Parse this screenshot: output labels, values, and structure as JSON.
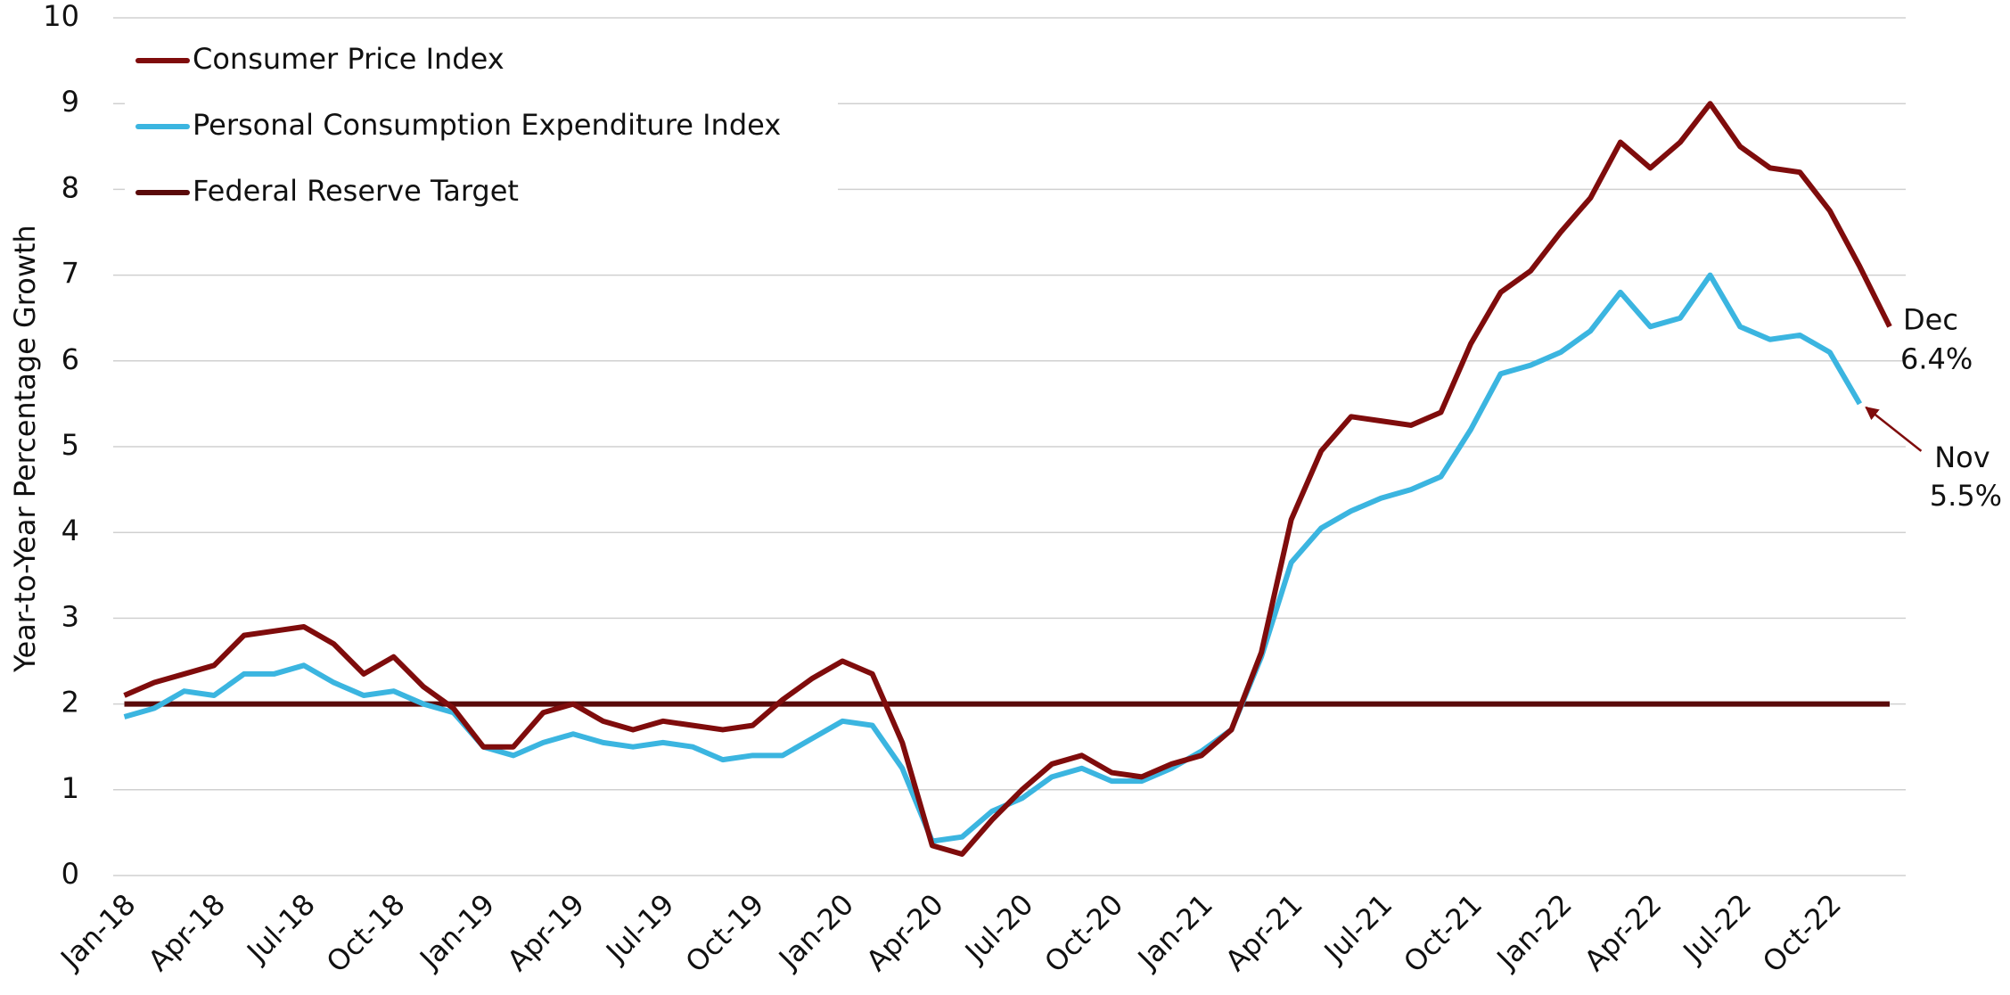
{
  "chart_data": {
    "type": "line",
    "ylabel": "Year-to-Year Percentage Growth",
    "categories": [
      "Jan-18",
      null,
      null,
      "Apr-18",
      null,
      null,
      "Jul-18",
      null,
      null,
      "Oct-18",
      null,
      null,
      "Jan-19",
      null,
      null,
      "Apr-19",
      null,
      null,
      "Jul-19",
      null,
      null,
      "Oct-19",
      null,
      null,
      "Jan-20",
      null,
      null,
      "Apr-20",
      null,
      null,
      "Jul-20",
      null,
      null,
      "Oct-20",
      null,
      null,
      "Jan-21",
      null,
      null,
      "Apr-21",
      null,
      null,
      "Jul-21",
      null,
      null,
      "Oct-21",
      null,
      null,
      "Jan-22",
      null,
      null,
      "Apr-22",
      null,
      null,
      "Jul-22",
      null,
      null,
      "Oct-22",
      null,
      null
    ],
    "series": [
      {
        "name": "Consumer Price Index",
        "color": "#7f0c0c",
        "values": [
          2.1,
          2.25,
          2.35,
          2.45,
          2.8,
          2.85,
          2.9,
          2.7,
          2.35,
          2.55,
          2.2,
          1.95,
          1.5,
          1.5,
          1.9,
          2.0,
          1.8,
          1.7,
          1.8,
          1.75,
          1.7,
          1.75,
          2.05,
          2.3,
          2.5,
          2.35,
          1.55,
          0.35,
          0.25,
          0.65,
          1.0,
          1.3,
          1.4,
          1.2,
          1.15,
          1.3,
          1.4,
          1.7,
          2.6,
          4.15,
          4.95,
          5.35,
          5.3,
          5.25,
          5.4,
          6.2,
          6.8,
          7.05,
          7.5,
          7.9,
          8.55,
          8.25,
          8.55,
          9.0,
          8.5,
          8.25,
          8.2,
          7.75,
          7.1,
          6.4
        ]
      },
      {
        "name": "Personal Consumption Expenditure Index",
        "color": "#3bb5e0",
        "values": [
          1.85,
          1.95,
          2.15,
          2.1,
          2.35,
          2.35,
          2.45,
          2.25,
          2.1,
          2.15,
          2.0,
          1.9,
          1.5,
          1.4,
          1.55,
          1.65,
          1.55,
          1.5,
          1.55,
          1.5,
          1.35,
          1.4,
          1.4,
          1.6,
          1.8,
          1.75,
          1.25,
          0.4,
          0.45,
          0.75,
          0.9,
          1.15,
          1.25,
          1.1,
          1.1,
          1.25,
          1.45,
          1.7,
          2.55,
          3.65,
          4.05,
          4.25,
          4.4,
          4.5,
          4.65,
          5.2,
          5.85,
          5.95,
          6.1,
          6.35,
          6.8,
          6.4,
          6.5,
          7.0,
          6.4,
          6.25,
          6.3,
          6.1,
          5.5,
          null
        ]
      },
      {
        "name": "Federal Reserve Target",
        "color": "#5a0a0a",
        "values": [
          2,
          2,
          2,
          2,
          2,
          2,
          2,
          2,
          2,
          2,
          2,
          2,
          2,
          2,
          2,
          2,
          2,
          2,
          2,
          2,
          2,
          2,
          2,
          2,
          2,
          2,
          2,
          2,
          2,
          2,
          2,
          2,
          2,
          2,
          2,
          2,
          2,
          2,
          2,
          2,
          2,
          2,
          2,
          2,
          2,
          2,
          2,
          2,
          2,
          2,
          2,
          2,
          2,
          2,
          2,
          2,
          2,
          2,
          2,
          2
        ]
      }
    ],
    "annotations": [
      {
        "lines": [
          "Dec",
          "6.4%"
        ]
      },
      {
        "lines": [
          "Nov",
          "5.5%"
        ]
      }
    ],
    "ylim": [
      0,
      10
    ],
    "yticks": [
      0,
      1,
      2,
      3,
      4,
      5,
      6,
      7,
      8,
      9,
      10
    ],
    "grid": true,
    "legend": "upper left"
  }
}
